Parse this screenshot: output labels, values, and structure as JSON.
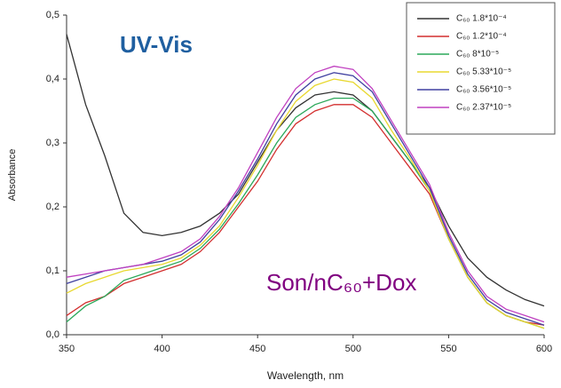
{
  "chart_data": {
    "type": "line",
    "annotations": [
      "UV-Vis",
      "Son/nC₆₀+Dox"
    ],
    "xlabel": "Wavelength, nm",
    "ylabel": "Absorbance",
    "x": [
      350,
      360,
      370,
      380,
      390,
      400,
      410,
      420,
      430,
      440,
      450,
      460,
      470,
      480,
      490,
      500,
      510,
      520,
      530,
      540,
      550,
      560,
      570,
      580,
      590,
      600
    ],
    "series": [
      {
        "name": "C₆₀ 1.8*10⁻⁴",
        "color": "#333333",
        "values": [
          0.47,
          0.36,
          0.28,
          0.19,
          0.16,
          0.155,
          0.16,
          0.17,
          0.19,
          0.22,
          0.27,
          0.32,
          0.355,
          0.375,
          0.38,
          0.375,
          0.35,
          0.31,
          0.27,
          0.23,
          0.17,
          0.12,
          0.09,
          0.07,
          0.055,
          0.045
        ]
      },
      {
        "name": "C₆₀ 1.2*10⁻⁴",
        "color": "#d32f2f",
        "values": [
          0.03,
          0.05,
          0.06,
          0.08,
          0.09,
          0.1,
          0.11,
          0.13,
          0.16,
          0.2,
          0.24,
          0.29,
          0.33,
          0.35,
          0.36,
          0.36,
          0.34,
          0.3,
          0.26,
          0.22,
          0.15,
          0.09,
          0.05,
          0.03,
          0.02,
          0.015
        ]
      },
      {
        "name": "C₆₀ 8*10⁻⁵",
        "color": "#2ca85a",
        "values": [
          0.02,
          0.045,
          0.06,
          0.085,
          0.095,
          0.105,
          0.115,
          0.135,
          0.165,
          0.205,
          0.25,
          0.3,
          0.34,
          0.36,
          0.37,
          0.37,
          0.35,
          0.31,
          0.27,
          0.225,
          0.15,
          0.09,
          0.05,
          0.03,
          0.02,
          0.01
        ]
      },
      {
        "name": "C₆₀ 5.33*10⁻⁵",
        "color": "#e8d830",
        "values": [
          0.065,
          0.08,
          0.09,
          0.1,
          0.105,
          0.11,
          0.12,
          0.14,
          0.17,
          0.215,
          0.265,
          0.32,
          0.365,
          0.39,
          0.4,
          0.395,
          0.37,
          0.32,
          0.275,
          0.225,
          0.15,
          0.09,
          0.05,
          0.03,
          0.02,
          0.01
        ]
      },
      {
        "name": "C₆₀ 3.56*10⁻⁵",
        "color": "#4040a0",
        "values": [
          0.08,
          0.09,
          0.1,
          0.105,
          0.11,
          0.115,
          0.125,
          0.145,
          0.18,
          0.225,
          0.275,
          0.33,
          0.375,
          0.4,
          0.41,
          0.405,
          0.38,
          0.33,
          0.28,
          0.23,
          0.155,
          0.095,
          0.055,
          0.035,
          0.025,
          0.015
        ]
      },
      {
        "name": "C₆₀ 2.37*10⁻⁵",
        "color": "#c040c0",
        "values": [
          0.09,
          0.095,
          0.1,
          0.105,
          0.11,
          0.12,
          0.13,
          0.15,
          0.185,
          0.23,
          0.285,
          0.34,
          0.385,
          0.41,
          0.42,
          0.415,
          0.385,
          0.335,
          0.285,
          0.235,
          0.16,
          0.1,
          0.06,
          0.04,
          0.03,
          0.02
        ]
      }
    ],
    "xlim": [
      350,
      600
    ],
    "xticks": [
      350,
      400,
      450,
      500,
      550,
      600
    ],
    "ylim": [
      0,
      0.5
    ],
    "yticks": [
      {
        "value": 0,
        "label": "0,0"
      },
      {
        "value": 0.1,
        "label": "0,1"
      },
      {
        "value": 0.2,
        "label": "0,2"
      },
      {
        "value": 0.3,
        "label": "0,3"
      },
      {
        "value": 0.4,
        "label": "0,4"
      },
      {
        "value": 0.5,
        "label": "0,5"
      }
    ],
    "legend": "upper right"
  }
}
